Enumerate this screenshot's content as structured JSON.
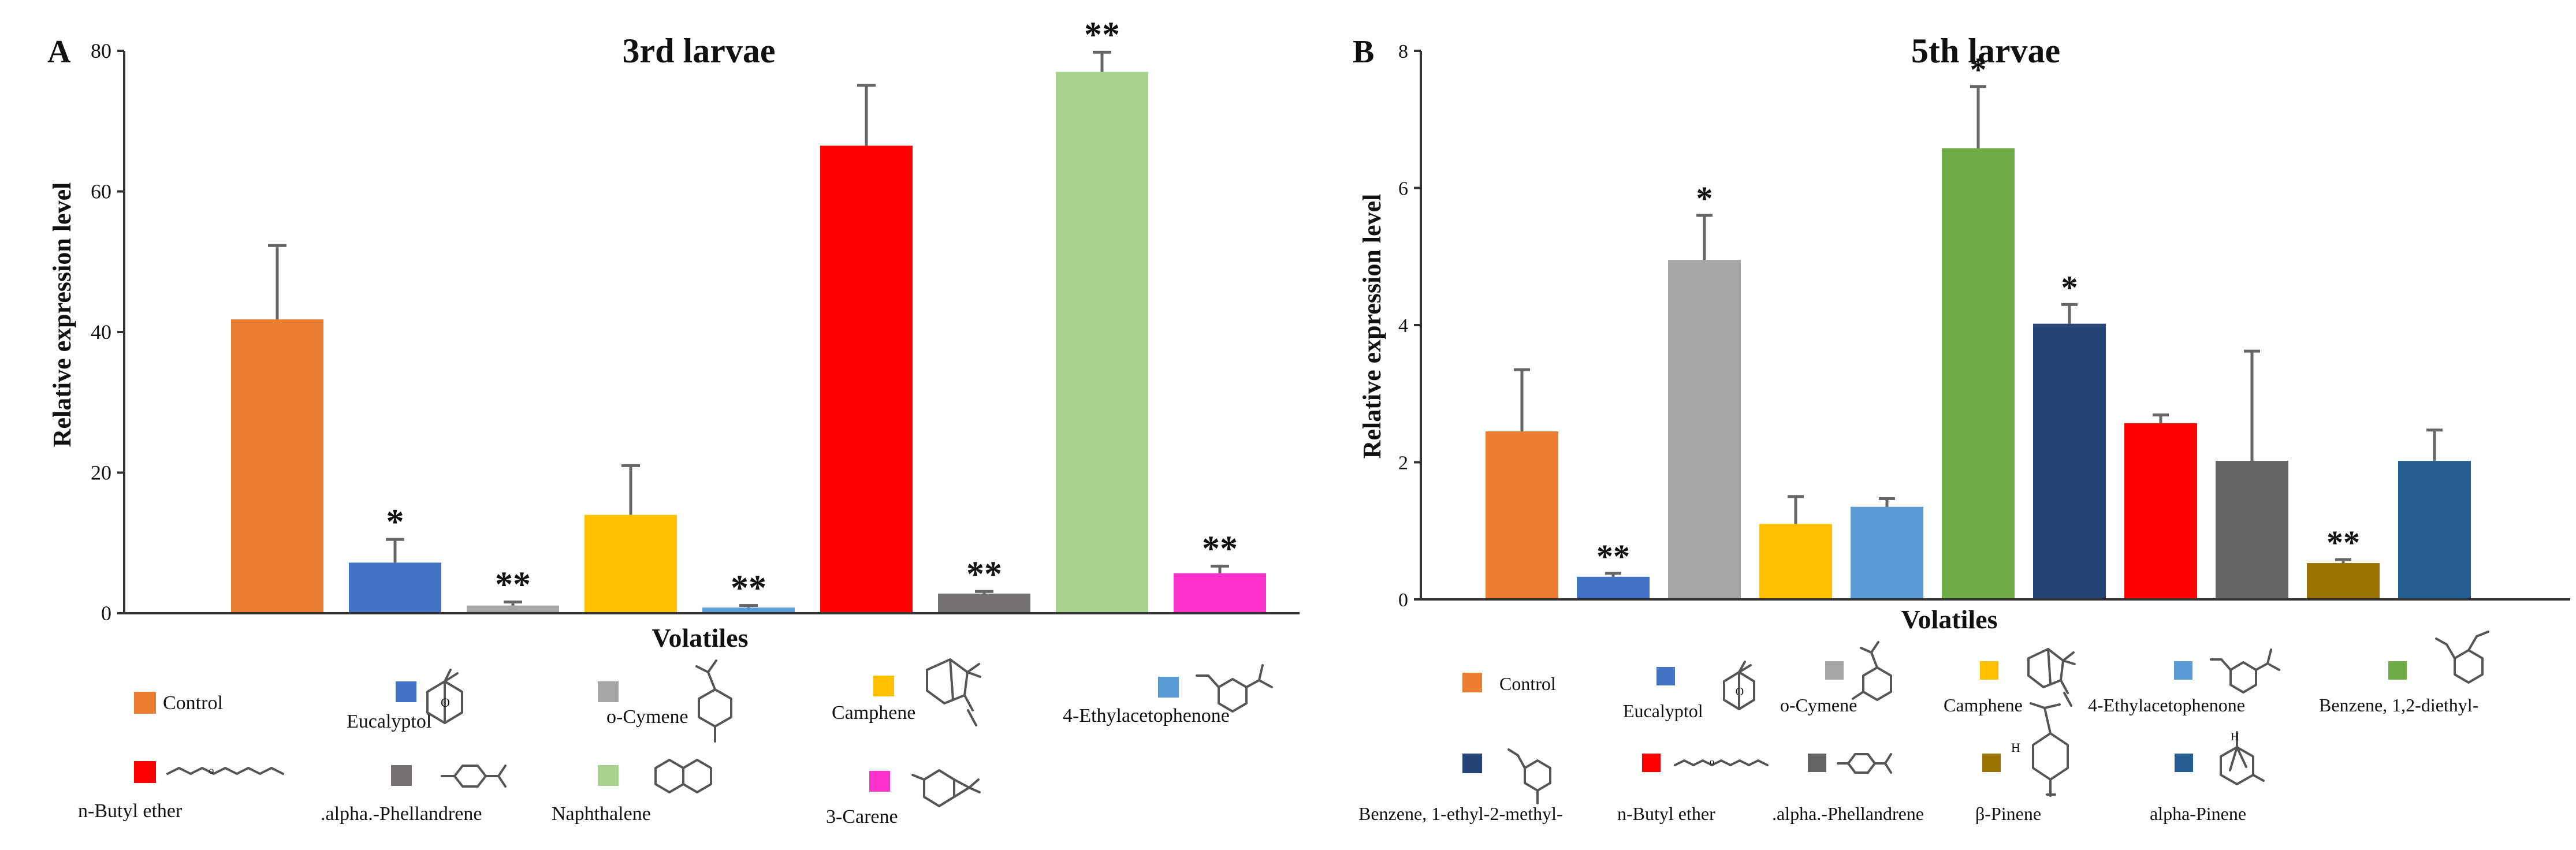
{
  "chart_data": [
    {
      "type": "bar",
      "panel_label": "A",
      "title": "3rd larvae",
      "xlabel": "Volatiles",
      "ylabel": "Relative expression level",
      "ylim": [
        0,
        80
      ],
      "yticks": [
        0,
        20,
        40,
        60,
        80
      ],
      "grid": false,
      "categories": [
        "Control",
        "Eucalyptol",
        "o-Cymene",
        "Camphene",
        "4-Ethylacetophenone",
        "n-Butyl ether",
        ".alpha.-Phellandrene",
        "Naphthalene",
        "3-Carene"
      ],
      "bar_order": [
        "Control",
        "Eucalyptol",
        "o-Cymene",
        "Camphene",
        "4-Ethylacetophenone",
        "n-Butyl ether",
        ".alpha.-Phellandrene",
        "Naphthalene",
        "3-Carene"
      ],
      "values": [
        41.8,
        7.2,
        1.1,
        14.0,
        0.8,
        66.5,
        2.8,
        77.0,
        5.7
      ],
      "errors": [
        10.5,
        3.3,
        0.5,
        7.0,
        0.3,
        8.6,
        0.3,
        2.8,
        1.0
      ],
      "significance": [
        "",
        "*",
        "**",
        "",
        "**",
        "",
        "**",
        "**",
        "**"
      ],
      "colors": [
        "#ED7D31",
        "#4472C4",
        "#A5A5A5",
        "#FFC000",
        "#5B9BD5",
        "#FF0000",
        "#767171",
        "#A9D18E",
        "#FF33CC"
      ],
      "legend": [
        "Control",
        "Eucalyptol",
        "o-Cymene",
        "Camphene",
        "4-Ethylacetophenone",
        "n-Butyl ether",
        ".alpha.-Phellandrene",
        "Naphthalene",
        "3-Carene"
      ]
    },
    {
      "type": "bar",
      "panel_label": "B",
      "title": "5th larvae",
      "xlabel": "Volatiles",
      "ylabel": "Relative expression level",
      "ylim": [
        0,
        8
      ],
      "yticks": [
        0,
        2,
        4,
        6,
        8
      ],
      "grid": false,
      "categories": [
        "Control",
        "Eucalyptol",
        "o-Cymene",
        "Camphene",
        "4-Ethylacetophenone",
        "Benzene, 1,2-diethyl-",
        "Benzene, 1-ethyl-2-methyl-",
        "n-Butyl ether",
        ".alpha.-Phellandrene",
        "β-Pinene",
        "alpha-Pinene"
      ],
      "values": [
        2.45,
        0.33,
        4.95,
        1.1,
        1.35,
        6.58,
        4.02,
        2.57,
        2.02,
        0.53,
        2.02
      ],
      "errors": [
        0.9,
        0.05,
        0.65,
        0.4,
        0.12,
        0.9,
        0.28,
        0.12,
        1.6,
        0.05,
        0.45
      ],
      "significance": [
        "",
        "**",
        "*",
        "",
        "",
        "*",
        "*",
        "",
        "",
        "**",
        ""
      ],
      "colors": [
        "#ED7D31",
        "#4472C4",
        "#A5A5A5",
        "#FFC000",
        "#5B9BD5",
        "#70AD47",
        "#264478",
        "#FF0000",
        "#636363",
        "#997300",
        "#255E91"
      ],
      "legend": [
        "Control",
        "Eucalyptol",
        "o-Cymene",
        "Camphene",
        "4-Ethylacetophenone",
        "Benzene, 1,2-diethyl-",
        "Benzene, 1-ethyl-2-methyl-",
        "n-Butyl ether",
        ".alpha.-Phellandrene",
        "β-Pinene",
        "alpha-Pinene"
      ]
    }
  ]
}
